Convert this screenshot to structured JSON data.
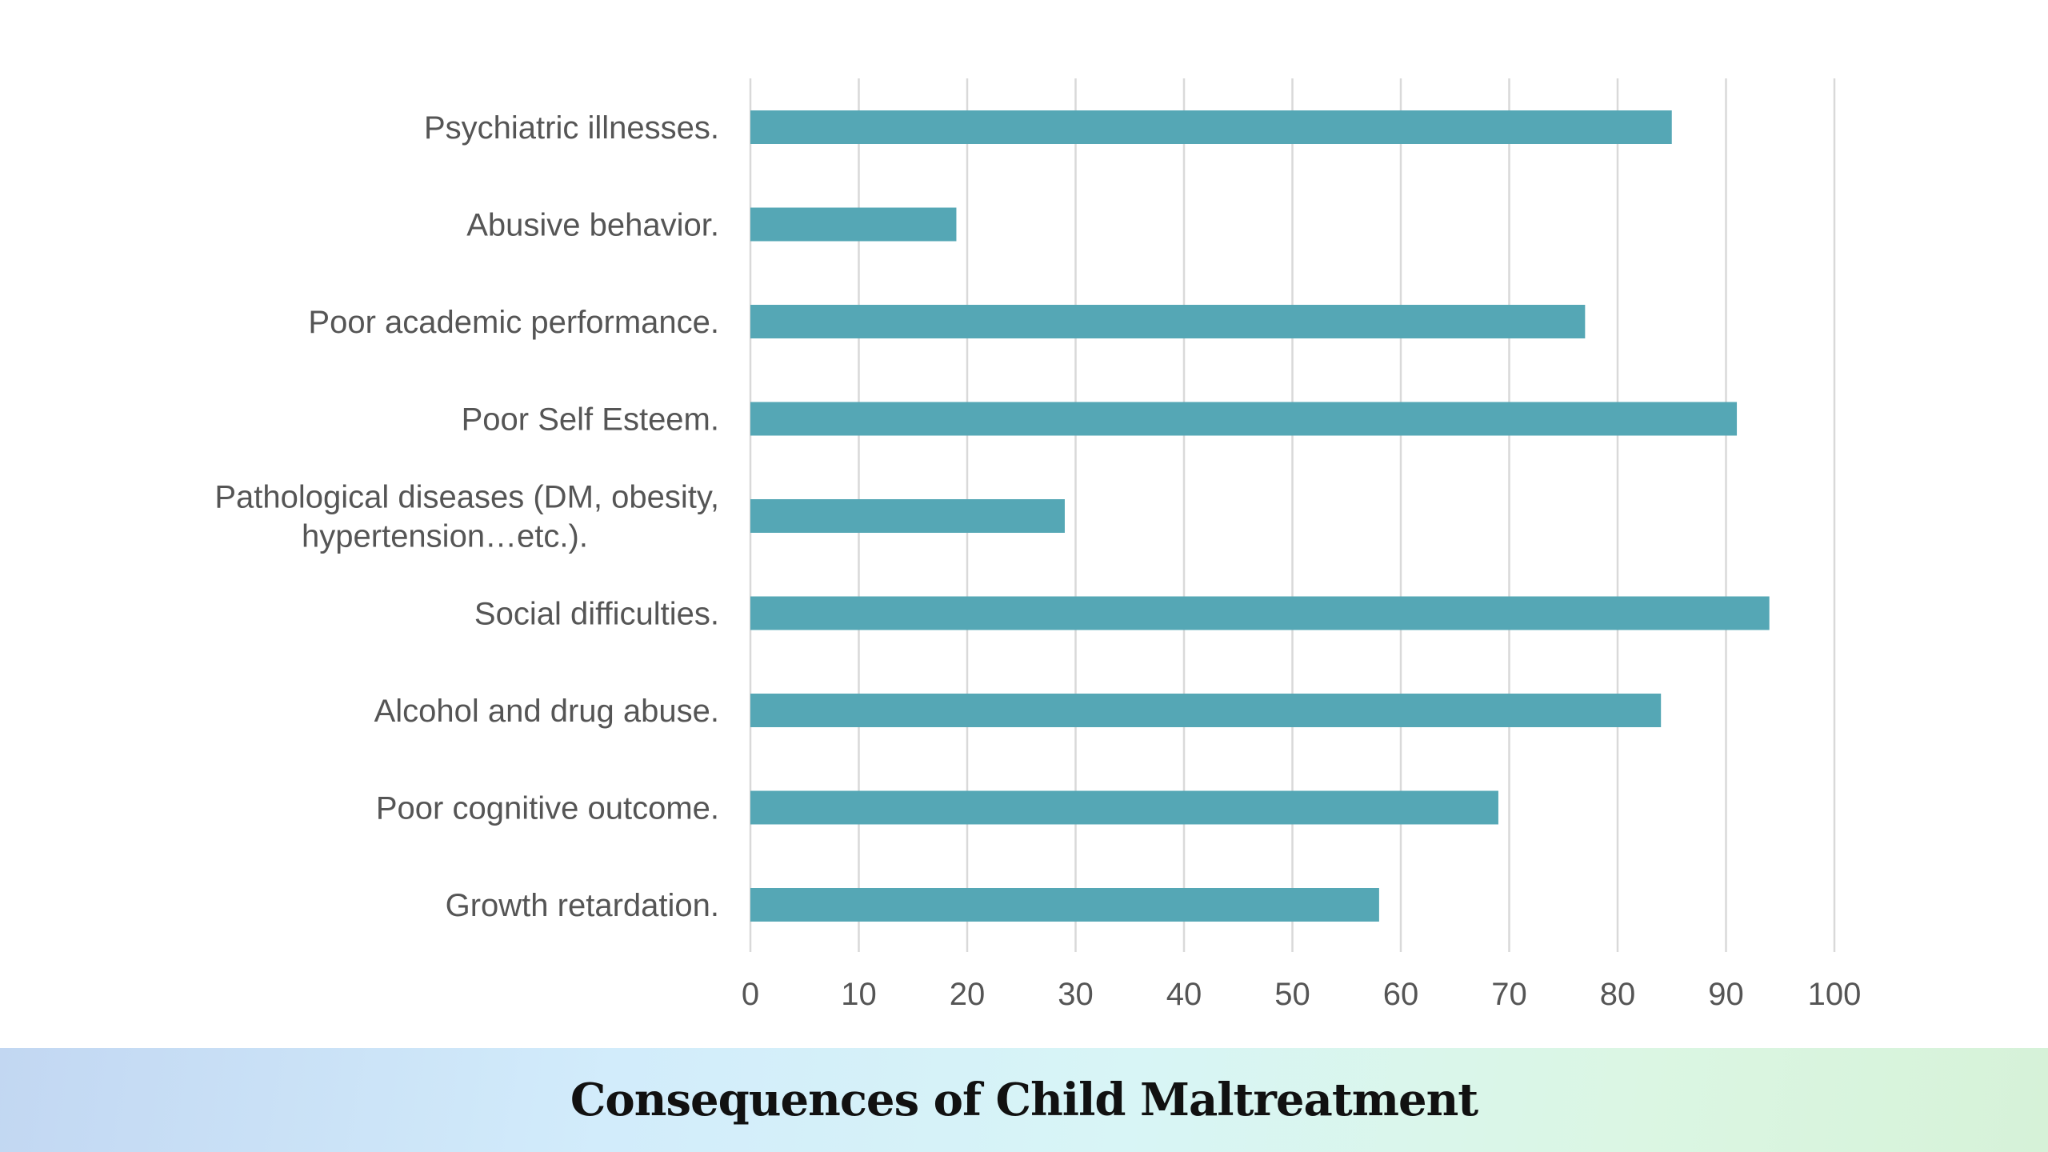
{
  "page": {
    "title": "Consequences of Child Maltreatment"
  },
  "colors": {
    "bar": "#55a7b5",
    "grid": "#d9d9d9",
    "text": "#555555"
  },
  "chart_data": {
    "type": "bar",
    "orientation": "horizontal",
    "categories": [
      "Psychiatric illnesses.",
      "Abusive behavior.",
      "Poor academic performance.",
      "Poor Self Esteem.",
      "Pathological diseases (DM, obesity, hypertension…etc.).",
      "Social difficulties.",
      "Alcohol and drug abuse.",
      "Poor cognitive outcome.",
      "Growth retardation."
    ],
    "category_lines": [
      [
        "Psychiatric illnesses."
      ],
      [
        "Abusive behavior."
      ],
      [
        "Poor academic performance."
      ],
      [
        "Poor Self Esteem."
      ],
      [
        "Pathological diseases (DM, obesity,",
        "hypertension…etc.)."
      ],
      [
        "Social difficulties."
      ],
      [
        "Alcohol and drug abuse."
      ],
      [
        "Poor cognitive outcome."
      ],
      [
        "Growth retardation."
      ]
    ],
    "values": [
      85,
      19,
      77,
      91,
      29,
      94,
      84,
      69,
      58
    ],
    "xlim": [
      0,
      100
    ],
    "xticks": [
      "0",
      "10",
      "20",
      "30",
      "40",
      "50",
      "60",
      "70",
      "80",
      "90",
      "100"
    ],
    "grid": true,
    "legend": false
  }
}
